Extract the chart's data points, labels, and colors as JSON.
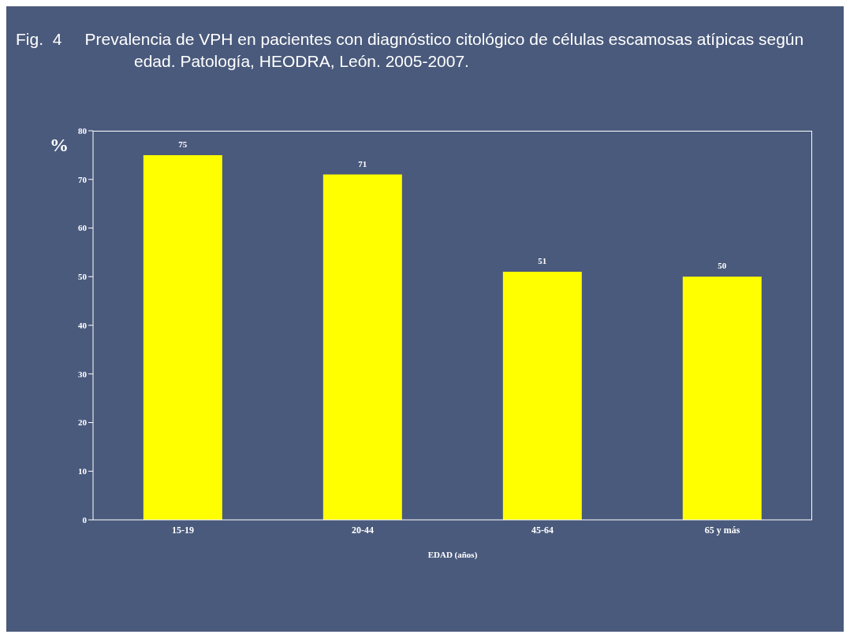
{
  "chart_data": {
    "type": "bar",
    "title": "Fig.  4     Prevalencia de VPH en pacientes con diagnóstico citológico de células escamosas atípicas según edad. Patología, HEODRA, León. 2005-2007.",
    "xlabel": "EDAD (años)",
    "ylabel": "%",
    "categories": [
      "15-19",
      "20-44",
      "45-64",
      "65 y más"
    ],
    "values": [
      75,
      71,
      51,
      50
    ],
    "color": "#ffff00",
    "ylim": [
      0,
      80
    ],
    "yticks": [
      0,
      10,
      20,
      30,
      40,
      50,
      60,
      70,
      80
    ],
    "grid": false,
    "data_labels": true
  }
}
